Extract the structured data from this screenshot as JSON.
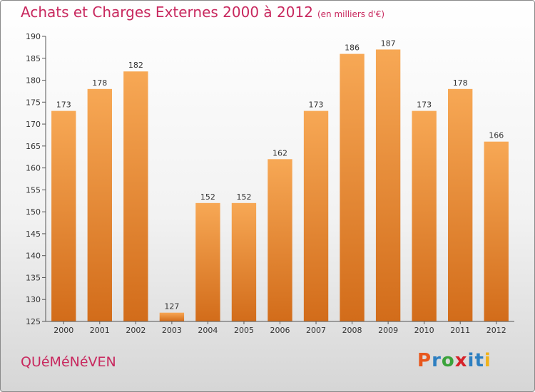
{
  "header": {
    "title": "Achats et Charges Externes 2000 à 2012",
    "unit": "(en milliers d'€)"
  },
  "footer": {
    "commune": "QUéMéNéVEN",
    "logo": {
      "letters": [
        "P",
        "r",
        "o",
        "x",
        "i",
        "t",
        "i"
      ],
      "colors": [
        "#e8571d",
        "#2d7fc1",
        "#3ba33b",
        "#d6222a",
        "#2d7fc1",
        "#2d7fc1",
        "#f0b21b"
      ]
    }
  },
  "chart_data": {
    "type": "bar",
    "title": "Achats et Charges Externes 2000 à 2012",
    "categories": [
      "2000",
      "2001",
      "2002",
      "2003",
      "2004",
      "2005",
      "2006",
      "2007",
      "2008",
      "2009",
      "2010",
      "2011",
      "2012"
    ],
    "values": [
      173,
      178,
      182,
      127,
      152,
      152,
      162,
      173,
      186,
      187,
      173,
      178,
      166
    ],
    "ylim": [
      125,
      190
    ],
    "yticks": [
      125,
      130,
      135,
      140,
      145,
      150,
      155,
      160,
      165,
      170,
      175,
      180,
      185,
      190
    ],
    "xlabel": "",
    "ylabel": "",
    "grid": false,
    "bar_color_top": "#f7a855",
    "bar_color_bottom": "#d26c1a"
  }
}
